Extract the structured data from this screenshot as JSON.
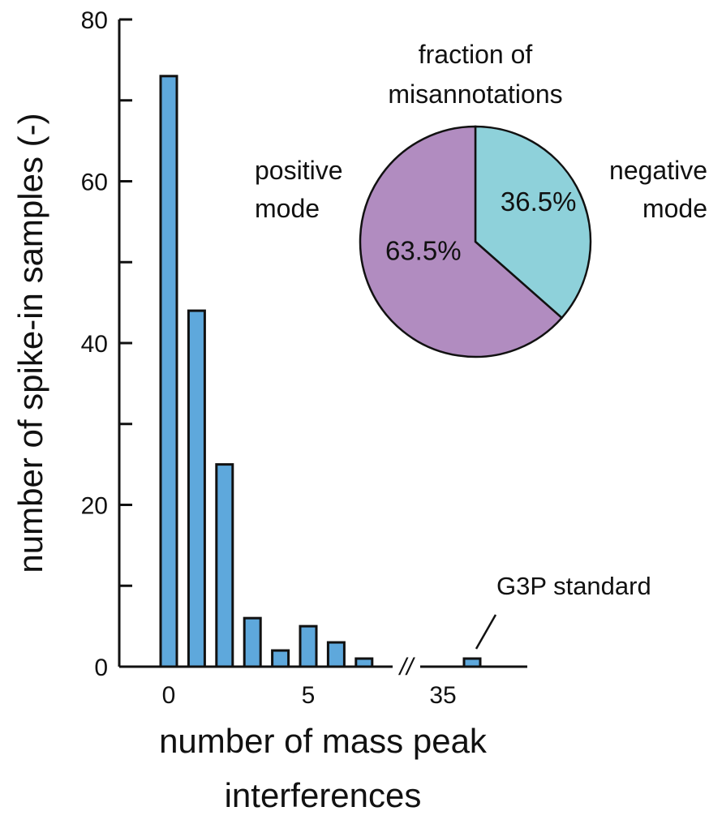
{
  "chart_data": [
    {
      "type": "bar",
      "xlabel": "number of mass peak interferences",
      "ylabel": "number of spike-in samples (-)",
      "ylim": [
        0,
        80
      ],
      "y_ticks": [
        0,
        20,
        40,
        60,
        80
      ],
      "x_ticks": [
        {
          "label": "0",
          "x": 0
        },
        {
          "label": "5",
          "x": 5
        },
        {
          "label": "35",
          "x": 35
        }
      ],
      "axis_break": "//",
      "x": [
        0,
        1,
        2,
        3,
        4,
        5,
        6,
        7,
        36
      ],
      "values": [
        73,
        44,
        25,
        6,
        2,
        5,
        3,
        1,
        1
      ],
      "bar_color": "#5ea8dc",
      "annotation": {
        "text": "G3P standard",
        "target_x": 36
      }
    },
    {
      "type": "pie",
      "title": "fraction of misannotations",
      "slices": [
        {
          "name": "negative mode",
          "value": 36.5,
          "label": "36.5%",
          "color": "#8ed1da"
        },
        {
          "name": "positive mode",
          "value": 63.5,
          "label": "63.5%",
          "color": "#b18cc0"
        }
      ]
    }
  ]
}
